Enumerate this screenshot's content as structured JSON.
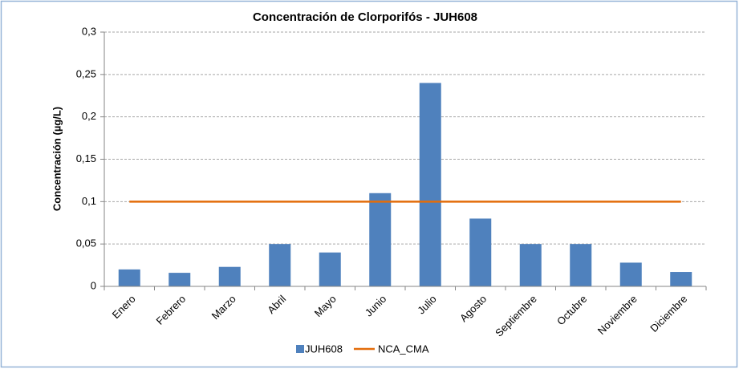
{
  "chart_data": {
    "type": "bar",
    "title": "Concentración de Clorporifós - JUH608",
    "y_label": "Concentración (µg/L)",
    "categories": [
      "Enero",
      "Febrero",
      "Marzo",
      "Abril",
      "Mayo",
      "Junio",
      "Julio",
      "Agosto",
      "Septiembre",
      "Octubre",
      "Noviembre",
      "Diciembre"
    ],
    "series": [
      {
        "name": "JUH608",
        "type": "bar",
        "color": "#4f81bd",
        "values": [
          0.02,
          0.016,
          0.023,
          0.05,
          0.04,
          0.11,
          0.24,
          0.08,
          0.05,
          0.05,
          0.028,
          0.017
        ]
      },
      {
        "name": "NCA_CMA",
        "type": "line",
        "color": "#e36c0a",
        "values": [
          0.1,
          0.1,
          0.1,
          0.1,
          0.1,
          0.1,
          0.1,
          0.1,
          0.1,
          0.1,
          0.1,
          0.1
        ]
      }
    ],
    "ylim": [
      0,
      0.3
    ],
    "yticks": [
      0,
      {
        "value": 0.05,
        "label": "0,05"
      },
      {
        "value": 0.1,
        "label": "0,1"
      },
      {
        "value": 0.15,
        "label": "0,15"
      },
      {
        "value": 0.2,
        "label": "0,2"
      },
      {
        "value": 0.25,
        "label": "0,25"
      },
      {
        "value": 0.3,
        "label": "0,3"
      }
    ],
    "grid": true,
    "legend": "bottom"
  }
}
